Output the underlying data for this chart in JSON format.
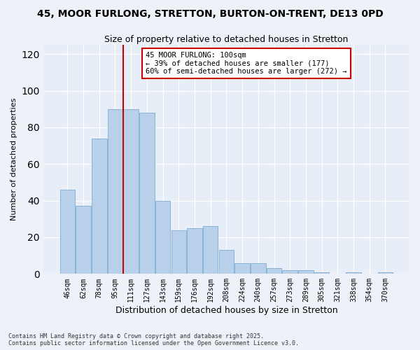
{
  "title": "45, MOOR FURLONG, STRETTON, BURTON-ON-TRENT, DE13 0PD",
  "subtitle": "Size of property relative to detached houses in Stretton",
  "xlabel": "Distribution of detached houses by size in Stretton",
  "ylabel": "Number of detached properties",
  "categories": [
    "46sqm",
    "62sqm",
    "78sqm",
    "95sqm",
    "111sqm",
    "127sqm",
    "143sqm",
    "159sqm",
    "176sqm",
    "192sqm",
    "208sqm",
    "224sqm",
    "240sqm",
    "257sqm",
    "273sqm",
    "289sqm",
    "305sqm",
    "321sqm",
    "338sqm",
    "354sqm",
    "370sqm"
  ],
  "values": [
    46,
    37,
    74,
    90,
    90,
    88,
    40,
    24,
    25,
    26,
    13,
    6,
    6,
    3,
    2,
    2,
    1,
    0,
    1,
    0,
    1
  ],
  "bar_color": "#b8d0ea",
  "bar_edge_color": "#88b4d8",
  "vline_x": 3.5,
  "vline_color": "#cc0000",
  "annotation_text": "45 MOOR FURLONG: 100sqm\n← 39% of detached houses are smaller (177)\n60% of semi-detached houses are larger (272) →",
  "annotation_box_color": "#cc0000",
  "ylim": [
    0,
    125
  ],
  "yticks": [
    0,
    20,
    40,
    60,
    80,
    100,
    120
  ],
  "bg_color": "#e8eef7",
  "grid_color": "#d0d8e8",
  "footer": "Contains HM Land Registry data © Crown copyright and database right 2025.\nContains public sector information licensed under the Open Government Licence v3.0.",
  "fig_bg": "#eef2f8"
}
